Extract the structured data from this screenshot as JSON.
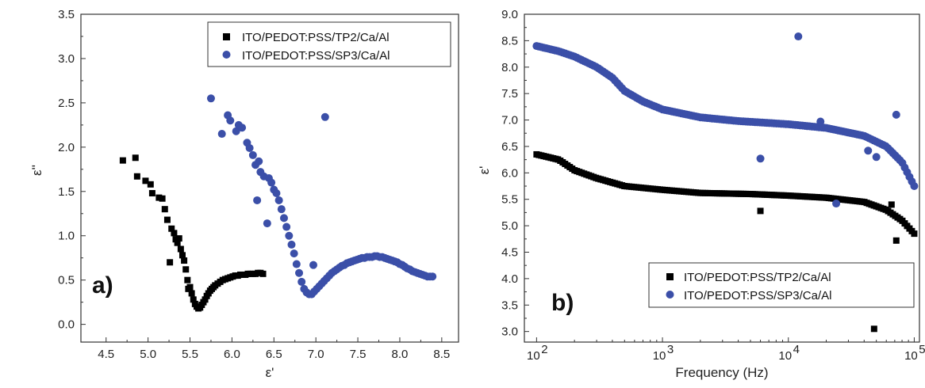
{
  "chart_data": [
    {
      "type": "scatter",
      "panel_label": "a)",
      "xlabel": "ε'",
      "ylabel": "ε''",
      "xlim": [
        4.2,
        8.7
      ],
      "ylim": [
        -0.2,
        3.5
      ],
      "xticks": [
        "4.5",
        "5.0",
        "5.5",
        "6.0",
        "6.5",
        "7.0",
        "7.5",
        "8.0",
        "8.5"
      ],
      "yticks": [
        "0.0",
        "0.5",
        "1.0",
        "1.5",
        "2.0",
        "2.5",
        "3.0",
        "3.5"
      ],
      "legend_position": "top-right",
      "series": [
        {
          "name": "ITO/PEDOT:PSS/TP2/Ca/Al",
          "marker": "square",
          "color": "#000000",
          "points": [
            [
              4.7,
              1.85
            ],
            [
              4.85,
              1.88
            ],
            [
              4.87,
              1.67
            ],
            [
              4.97,
              1.62
            ],
            [
              5.03,
              1.58
            ],
            [
              5.05,
              1.48
            ],
            [
              5.13,
              1.43
            ],
            [
              5.17,
              1.42
            ],
            [
              5.2,
              1.3
            ],
            [
              5.23,
              1.18
            ],
            [
              5.26,
              0.7
            ],
            [
              5.28,
              1.08
            ],
            [
              5.31,
              1.03
            ],
            [
              5.33,
              0.96
            ],
            [
              5.35,
              0.92
            ],
            [
              5.37,
              0.97
            ],
            [
              5.39,
              0.85
            ],
            [
              5.41,
              0.78
            ],
            [
              5.43,
              0.72
            ],
            [
              5.45,
              0.62
            ],
            [
              5.47,
              0.5
            ],
            [
              5.48,
              0.4
            ],
            [
              5.5,
              0.42
            ],
            [
              5.52,
              0.35
            ],
            [
              5.54,
              0.28
            ],
            [
              5.56,
              0.23
            ],
            [
              5.58,
              0.2
            ],
            [
              5.6,
              0.18
            ],
            [
              5.62,
              0.19
            ],
            [
              5.64,
              0.22
            ],
            [
              5.66,
              0.25
            ],
            [
              5.68,
              0.28
            ],
            [
              5.7,
              0.32
            ],
            [
              5.72,
              0.35
            ],
            [
              5.74,
              0.38
            ],
            [
              5.76,
              0.4
            ],
            [
              5.78,
              0.42
            ],
            [
              5.8,
              0.44
            ],
            [
              5.83,
              0.46
            ],
            [
              5.86,
              0.48
            ],
            [
              5.89,
              0.5
            ],
            [
              5.92,
              0.51
            ],
            [
              5.95,
              0.52
            ],
            [
              5.98,
              0.53
            ],
            [
              6.01,
              0.54
            ],
            [
              6.04,
              0.55
            ],
            [
              6.07,
              0.55
            ],
            [
              6.1,
              0.56
            ],
            [
              6.13,
              0.56
            ],
            [
              6.16,
              0.56
            ],
            [
              6.19,
              0.57
            ],
            [
              6.22,
              0.57
            ],
            [
              6.25,
              0.57
            ],
            [
              6.28,
              0.57
            ],
            [
              6.31,
              0.58
            ],
            [
              6.34,
              0.58
            ],
            [
              6.37,
              0.57
            ]
          ]
        },
        {
          "name": "ITO/PEDOT:PSS/SP3/Ca/Al",
          "marker": "circle",
          "color": "#3b4fa8",
          "points": [
            [
              5.75,
              2.55
            ],
            [
              5.88,
              2.15
            ],
            [
              5.95,
              2.36
            ],
            [
              5.98,
              2.3
            ],
            [
              6.05,
              2.18
            ],
            [
              6.08,
              2.25
            ],
            [
              6.12,
              2.22
            ],
            [
              6.18,
              2.05
            ],
            [
              6.21,
              1.99
            ],
            [
              6.25,
              1.91
            ],
            [
              6.28,
              1.8
            ],
            [
              6.3,
              1.4
            ],
            [
              6.32,
              1.84
            ],
            [
              6.34,
              1.72
            ],
            [
              6.38,
              1.67
            ],
            [
              6.42,
              1.14
            ],
            [
              6.44,
              1.65
            ],
            [
              6.47,
              1.6
            ],
            [
              6.5,
              1.52
            ],
            [
              6.53,
              1.48
            ],
            [
              6.56,
              1.4
            ],
            [
              6.59,
              1.3
            ],
            [
              6.62,
              1.2
            ],
            [
              6.65,
              1.1
            ],
            [
              6.68,
              1.0
            ],
            [
              6.71,
              0.9
            ],
            [
              6.74,
              0.8
            ],
            [
              6.77,
              0.68
            ],
            [
              6.8,
              0.58
            ],
            [
              6.83,
              0.48
            ],
            [
              6.86,
              0.4
            ],
            [
              6.89,
              0.36
            ],
            [
              6.92,
              0.34
            ],
            [
              6.95,
              0.34
            ],
            [
              6.97,
              0.67
            ],
            [
              7.11,
              2.34
            ],
            [
              6.98,
              0.37
            ],
            [
              7.01,
              0.4
            ],
            [
              7.04,
              0.43
            ],
            [
              7.07,
              0.46
            ],
            [
              7.1,
              0.49
            ],
            [
              7.13,
              0.52
            ],
            [
              7.16,
              0.55
            ],
            [
              7.19,
              0.58
            ],
            [
              7.22,
              0.6
            ],
            [
              7.25,
              0.62
            ],
            [
              7.28,
              0.64
            ],
            [
              7.31,
              0.66
            ],
            [
              7.34,
              0.67
            ],
            [
              7.37,
              0.69
            ],
            [
              7.4,
              0.7
            ],
            [
              7.43,
              0.71
            ],
            [
              7.46,
              0.72
            ],
            [
              7.49,
              0.73
            ],
            [
              7.52,
              0.74
            ],
            [
              7.55,
              0.75
            ],
            [
              7.58,
              0.75
            ],
            [
              7.61,
              0.76
            ],
            [
              7.64,
              0.76
            ],
            [
              7.67,
              0.76
            ],
            [
              7.7,
              0.77
            ],
            [
              7.73,
              0.77
            ],
            [
              7.76,
              0.76
            ],
            [
              7.79,
              0.76
            ],
            [
              7.82,
              0.75
            ],
            [
              7.85,
              0.74
            ],
            [
              7.88,
              0.73
            ],
            [
              7.91,
              0.72
            ],
            [
              7.94,
              0.71
            ],
            [
              7.97,
              0.7
            ],
            [
              8.0,
              0.68
            ],
            [
              8.03,
              0.67
            ],
            [
              8.06,
              0.65
            ],
            [
              8.09,
              0.63
            ],
            [
              8.12,
              0.62
            ],
            [
              8.15,
              0.6
            ],
            [
              8.18,
              0.59
            ],
            [
              8.21,
              0.58
            ],
            [
              8.24,
              0.57
            ],
            [
              8.27,
              0.56
            ],
            [
              8.3,
              0.55
            ],
            [
              8.33,
              0.54
            ],
            [
              8.36,
              0.54
            ],
            [
              8.39,
              0.54
            ]
          ]
        }
      ]
    },
    {
      "type": "scatter",
      "panel_label": "b)",
      "xlabel": "Frequency (Hz)",
      "ylabel": "ε'",
      "x_scale": "log",
      "xlim": [
        80,
        110000
      ],
      "ylim": [
        2.8,
        9.0
      ],
      "xticks": [
        {
          "value": 100,
          "label_base": "10",
          "label_exp": "2"
        },
        {
          "value": 1000,
          "label_base": "10",
          "label_exp": "3"
        },
        {
          "value": 10000,
          "label_base": "10",
          "label_exp": "4"
        },
        {
          "value": 100000,
          "label_base": "10",
          "label_exp": "5"
        }
      ],
      "yticks": [
        "3.0",
        "3.5",
        "4.0",
        "4.5",
        "5.0",
        "5.5",
        "6.0",
        "6.5",
        "7.0",
        "7.5",
        "8.0",
        "8.5",
        "9.0"
      ],
      "legend_position": "bottom-right",
      "series": [
        {
          "name": "ITO/PEDOT:PSS/TP2/Ca/Al",
          "marker": "square",
          "color": "#000000",
          "x_range": [
            100,
            100000
          ],
          "base_curve": [
            [
              100,
              6.35
            ],
            [
              150,
              6.25
            ],
            [
              200,
              6.05
            ],
            [
              300,
              5.9
            ],
            [
              500,
              5.75
            ],
            [
              1000,
              5.68
            ],
            [
              2000,
              5.62
            ],
            [
              5000,
              5.6
            ],
            [
              10000,
              5.57
            ],
            [
              20000,
              5.53
            ],
            [
              40000,
              5.45
            ],
            [
              60000,
              5.3
            ],
            [
              80000,
              5.1
            ],
            [
              100000,
              4.85
            ]
          ],
          "outliers": [
            [
              6000,
              5.28
            ],
            [
              48000,
              3.05
            ],
            [
              66000,
              5.4
            ],
            [
              72000,
              4.72
            ]
          ]
        },
        {
          "name": "ITO/PEDOT:PSS/SP3/Ca/Al",
          "marker": "circle",
          "color": "#3b4fa8",
          "x_range": [
            100,
            100000
          ],
          "base_curve": [
            [
              100,
              8.4
            ],
            [
              150,
              8.3
            ],
            [
              200,
              8.2
            ],
            [
              300,
              8.0
            ],
            [
              400,
              7.8
            ],
            [
              500,
              7.55
            ],
            [
              700,
              7.35
            ],
            [
              1000,
              7.2
            ],
            [
              2000,
              7.05
            ],
            [
              4000,
              6.98
            ],
            [
              10000,
              6.92
            ],
            [
              20000,
              6.85
            ],
            [
              40000,
              6.7
            ],
            [
              60000,
              6.5
            ],
            [
              80000,
              6.2
            ],
            [
              100000,
              5.75
            ]
          ],
          "outliers": [
            [
              6000,
              6.27
            ],
            [
              12000,
              8.58
            ],
            [
              18000,
              6.97
            ],
            [
              24000,
              5.42
            ],
            [
              43000,
              6.42
            ],
            [
              50000,
              6.3
            ],
            [
              72000,
              7.1
            ]
          ]
        }
      ]
    }
  ]
}
